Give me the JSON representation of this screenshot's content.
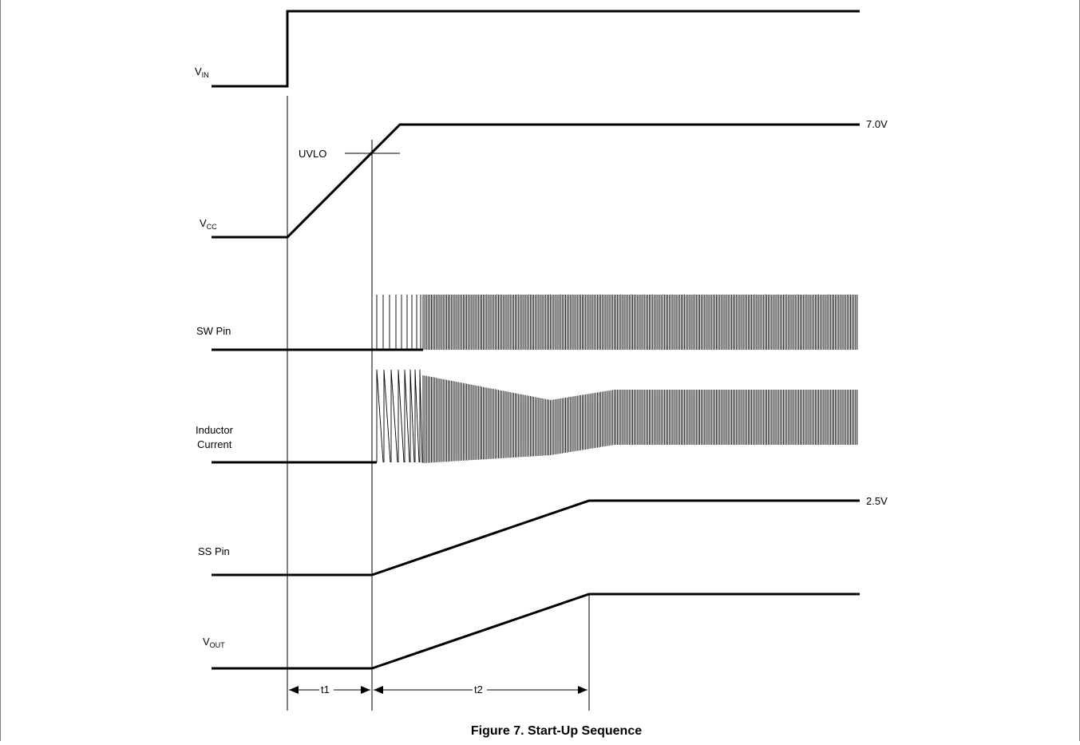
{
  "caption": "Figure 7. Start-Up Sequence",
  "signals": {
    "vin": {
      "main": "V",
      "sub": "IN"
    },
    "vcc": {
      "main": "V",
      "sub": "CC",
      "level": "7.0V"
    },
    "sw": {
      "label": "SW Pin"
    },
    "ind": {
      "line1": "Inductor",
      "line2": "Current"
    },
    "ss": {
      "label": "SS Pin",
      "level": "2.5V"
    },
    "vout": {
      "main": "V",
      "sub": "OUT"
    }
  },
  "annotations": {
    "uvlo": "UVLO",
    "t1": "t1",
    "t2": "t2"
  },
  "colors": {
    "trace": "#000000",
    "border": "#7f7f7f"
  }
}
